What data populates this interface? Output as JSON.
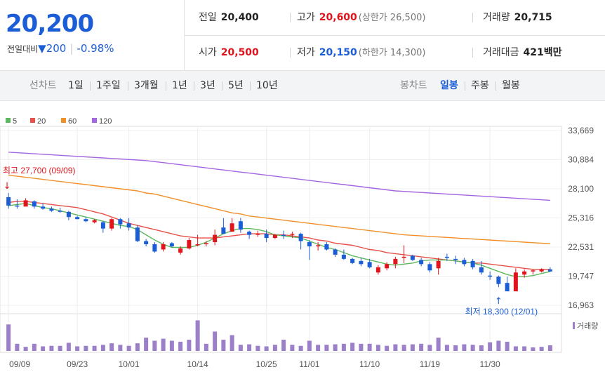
{
  "quote": {
    "price": "20,200",
    "change_label": "전일대비",
    "change_value": "200",
    "change_pct": "-0.98%",
    "prev_close_label": "전일",
    "prev_close": "20,400",
    "high_label": "고가",
    "high": "20,600",
    "upper_limit": "(상한가 26,500)",
    "volume_label": "거래량",
    "volume": "20,715",
    "open_label": "시가",
    "open": "20,500",
    "low_label": "저가",
    "low": "20,150",
    "lower_limit": "(하한가 14,300)",
    "turnover_label": "거래대금",
    "turnover": "421",
    "turnover_unit": "백만"
  },
  "toolbar": {
    "line_chart_label": "선차트",
    "ranges": [
      "1일",
      "1주일",
      "3개월",
      "1년",
      "3년",
      "5년",
      "10년"
    ],
    "candle_label": "봉차트",
    "candles": [
      "일봉",
      "주봉",
      "월봉"
    ],
    "active_candle": 0
  },
  "colors": {
    "up": "#e0141c",
    "down": "#1b5dd6",
    "ma5": "#5cb85c",
    "ma20": "#e8504a",
    "ma60": "#f0902a",
    "ma120": "#a366e0",
    "volume": "#9b7fc9"
  },
  "chart_data": {
    "type": "candlestick",
    "legend": [
      {
        "name": "5",
        "color": "#5cb85c"
      },
      {
        "name": "20",
        "color": "#e8504a"
      },
      {
        "name": "60",
        "color": "#f0902a"
      },
      {
        "name": "120",
        "color": "#a366e0"
      }
    ],
    "y_ticks": [
      "33,669",
      "30,884",
      "28,100",
      "25,316",
      "22,531",
      "19,747",
      "16,963"
    ],
    "ylim": [
      16963,
      33669
    ],
    "x_ticks": [
      {
        "label": "09/09",
        "index": 0
      },
      {
        "label": "09/23",
        "index": 8
      },
      {
        "label": "10/01",
        "index": 14
      },
      {
        "label": "10/14",
        "index": 22
      },
      {
        "label": "10/25",
        "index": 30
      },
      {
        "label": "11/01",
        "index": 35
      },
      {
        "label": "11/10",
        "index": 42
      },
      {
        "label": "11/19",
        "index": 49
      },
      {
        "label": "11/30",
        "index": 56
      }
    ],
    "annotations": {
      "high": {
        "text": "최고 27,700 (09/09)",
        "index": 0,
        "value": 27700
      },
      "low": {
        "text": "최저 18,300 (12/01)",
        "index": 57,
        "value": 18300
      }
    },
    "volume_label": "거래량",
    "candles": [
      [
        27300,
        27700,
        26200,
        26500
      ],
      [
        26500,
        27100,
        26200,
        26400
      ],
      [
        26400,
        27200,
        26500,
        27000
      ],
      [
        26900,
        27000,
        26200,
        26400
      ],
      [
        26400,
        26700,
        26100,
        26200
      ],
      [
        26200,
        26400,
        25900,
        26000
      ],
      [
        26000,
        26300,
        25800,
        25900
      ],
      [
        25900,
        26000,
        25100,
        25400
      ],
      [
        25400,
        25500,
        25200,
        25200
      ],
      [
        25200,
        25400,
        24900,
        25000
      ],
      [
        24900,
        25200,
        24800,
        25100
      ],
      [
        24900,
        25000,
        23900,
        24300
      ],
      [
        24300,
        25300,
        24100,
        25200
      ],
      [
        25200,
        25300,
        24300,
        24700
      ],
      [
        24800,
        25300,
        24100,
        24400
      ],
      [
        24400,
        24600,
        23000,
        23100
      ],
      [
        23100,
        23300,
        22600,
        22800
      ],
      [
        22800,
        23000,
        22000,
        22100
      ],
      [
        22300,
        23000,
        22100,
        22800
      ],
      [
        22900,
        23000,
        22500,
        22600
      ],
      [
        22000,
        22600,
        21800,
        22400
      ],
      [
        22400,
        23400,
        22300,
        23200
      ],
      [
        22700,
        23700,
        22600,
        22800
      ],
      [
        22800,
        23100,
        22600,
        22900
      ],
      [
        23000,
        24200,
        22700,
        23700
      ],
      [
        24400,
        25300,
        23900,
        23800
      ],
      [
        24000,
        25300,
        24100,
        24800
      ],
      [
        25000,
        25300,
        23900,
        24200
      ],
      [
        24000,
        24100,
        23300,
        23700
      ],
      [
        23800,
        24100,
        23500,
        23800
      ],
      [
        23800,
        24200,
        23000,
        23400
      ],
      [
        23400,
        23800,
        23300,
        23700
      ],
      [
        23700,
        24100,
        23300,
        23600
      ],
      [
        23700,
        24000,
        23400,
        23800
      ],
      [
        23800,
        23900,
        22300,
        23100
      ],
      [
        23000,
        23200,
        21300,
        22600
      ],
      [
        22600,
        23000,
        22200,
        22700
      ],
      [
        22800,
        23000,
        22200,
        22300
      ],
      [
        22300,
        22400,
        21600,
        21800
      ],
      [
        21800,
        22300,
        21300,
        21400
      ],
      [
        21400,
        21500,
        20900,
        21000
      ],
      [
        21200,
        21500,
        20700,
        20900
      ],
      [
        21100,
        21400,
        20500,
        20600
      ],
      [
        20100,
        20800,
        19900,
        20600
      ],
      [
        20500,
        21100,
        20300,
        20900
      ],
      [
        20900,
        21600,
        20500,
        21400
      ],
      [
        21500,
        22700,
        21000,
        21600
      ],
      [
        21700,
        21800,
        21200,
        21300
      ],
      [
        21300,
        21500,
        20700,
        20900
      ],
      [
        20900,
        21100,
        20100,
        20300
      ],
      [
        20500,
        21500,
        19900,
        21200
      ],
      [
        21600,
        21900,
        21200,
        21500
      ],
      [
        21400,
        21700,
        20900,
        21300
      ],
      [
        21300,
        21500,
        20700,
        20900
      ],
      [
        21200,
        21400,
        20400,
        20600
      ],
      [
        20600,
        21200,
        19900,
        20100
      ],
      [
        19800,
        20200,
        19400,
        19700
      ],
      [
        19700,
        19800,
        18700,
        19000
      ],
      [
        19100,
        19700,
        18300,
        18300
      ],
      [
        18300,
        20500,
        18300,
        20100
      ],
      [
        19900,
        20400,
        19600,
        20200
      ],
      [
        20300,
        20400,
        19900,
        20300
      ],
      [
        20200,
        20500,
        20100,
        20400
      ],
      [
        20400,
        20600,
        20150,
        20200
      ]
    ],
    "volume": [
      52,
      14,
      8,
      14,
      9,
      10,
      10,
      16,
      9,
      10,
      10,
      12,
      15,
      12,
      10,
      15,
      26,
      20,
      24,
      20,
      18,
      22,
      60,
      14,
      38,
      22,
      31,
      12,
      13,
      10,
      9,
      12,
      22,
      12,
      10,
      20,
      12,
      12,
      13,
      14,
      16,
      14,
      14,
      12,
      10,
      13,
      12,
      13,
      14,
      12,
      26,
      12,
      11,
      13,
      12,
      11,
      17,
      20,
      18,
      9,
      9,
      7,
      8,
      11
    ],
    "ma5": [
      26500,
      26600,
      26700,
      26500,
      26300,
      26200,
      26000,
      25800,
      25600,
      25400,
      25200,
      25000,
      24800,
      24600,
      24500,
      24200,
      23700,
      23200,
      22800,
      22500,
      22500,
      22500,
      22700,
      23000,
      23400,
      23800,
      24100,
      24300,
      24300,
      24200,
      24000,
      23700,
      23600,
      23500,
      23400,
      23100,
      22800,
      22500,
      22300,
      22000,
      21700,
      21500,
      21300,
      21100,
      20900,
      20800,
      20900,
      21000,
      21200,
      21300,
      21300,
      21300,
      21200,
      21100,
      21000,
      20800,
      20500,
      20200,
      19900,
      19700,
      19700,
      19800,
      20000,
      20200
    ],
    "ma20": [
      26800,
      26900,
      26900,
      26800,
      26700,
      26600,
      26500,
      26400,
      26300,
      26100,
      25900,
      25700,
      25400,
      25100,
      24800,
      24600,
      24400,
      24200,
      24000,
      23800,
      23600,
      23500,
      23400,
      23400,
      23400,
      23500,
      23600,
      23700,
      23800,
      23800,
      23800,
      23700,
      23700,
      23600,
      23500,
      23400,
      23200,
      23100,
      22900,
      22800,
      22700,
      22500,
      22300,
      22200,
      22000,
      21900,
      21800,
      21700,
      21600,
      21500,
      21400,
      21300,
      21200,
      21100,
      21000,
      21000,
      20900,
      20800,
      20700,
      20600,
      20500,
      20400,
      20400,
      20400
    ],
    "ma60": [
      29400,
      29300,
      29200,
      29100,
      29000,
      28900,
      28800,
      28700,
      28600,
      28500,
      28400,
      28300,
      28200,
      28100,
      28000,
      27900,
      27700,
      27600,
      27400,
      27200,
      27000,
      26800,
      26600,
      26400,
      26200,
      26000,
      25800,
      25700,
      25500,
      25400,
      25300,
      25200,
      25100,
      25000,
      24900,
      24800,
      24700,
      24600,
      24500,
      24400,
      24300,
      24200,
      24100,
      24000,
      23900,
      23800,
      23700,
      23650,
      23600,
      23550,
      23500,
      23450,
      23400,
      23350,
      23300,
      23250,
      23200,
      23150,
      23100,
      23050,
      23000,
      22950,
      22900,
      22850
    ],
    "ma120": [
      31600,
      31550,
      31500,
      31450,
      31400,
      31350,
      31300,
      31250,
      31200,
      31150,
      31100,
      31050,
      31000,
      30950,
      30900,
      30850,
      30800,
      30700,
      30600,
      30500,
      30400,
      30300,
      30200,
      30100,
      30000,
      29900,
      29800,
      29700,
      29600,
      29500,
      29400,
      29300,
      29200,
      29100,
      29000,
      28900,
      28800,
      28700,
      28600,
      28500,
      28400,
      28300,
      28200,
      28100,
      28000,
      27900,
      27850,
      27800,
      27750,
      27700,
      27650,
      27600,
      27550,
      27500,
      27450,
      27400,
      27350,
      27300,
      27250,
      27200,
      27150,
      27100,
      27050,
      27000
    ]
  }
}
